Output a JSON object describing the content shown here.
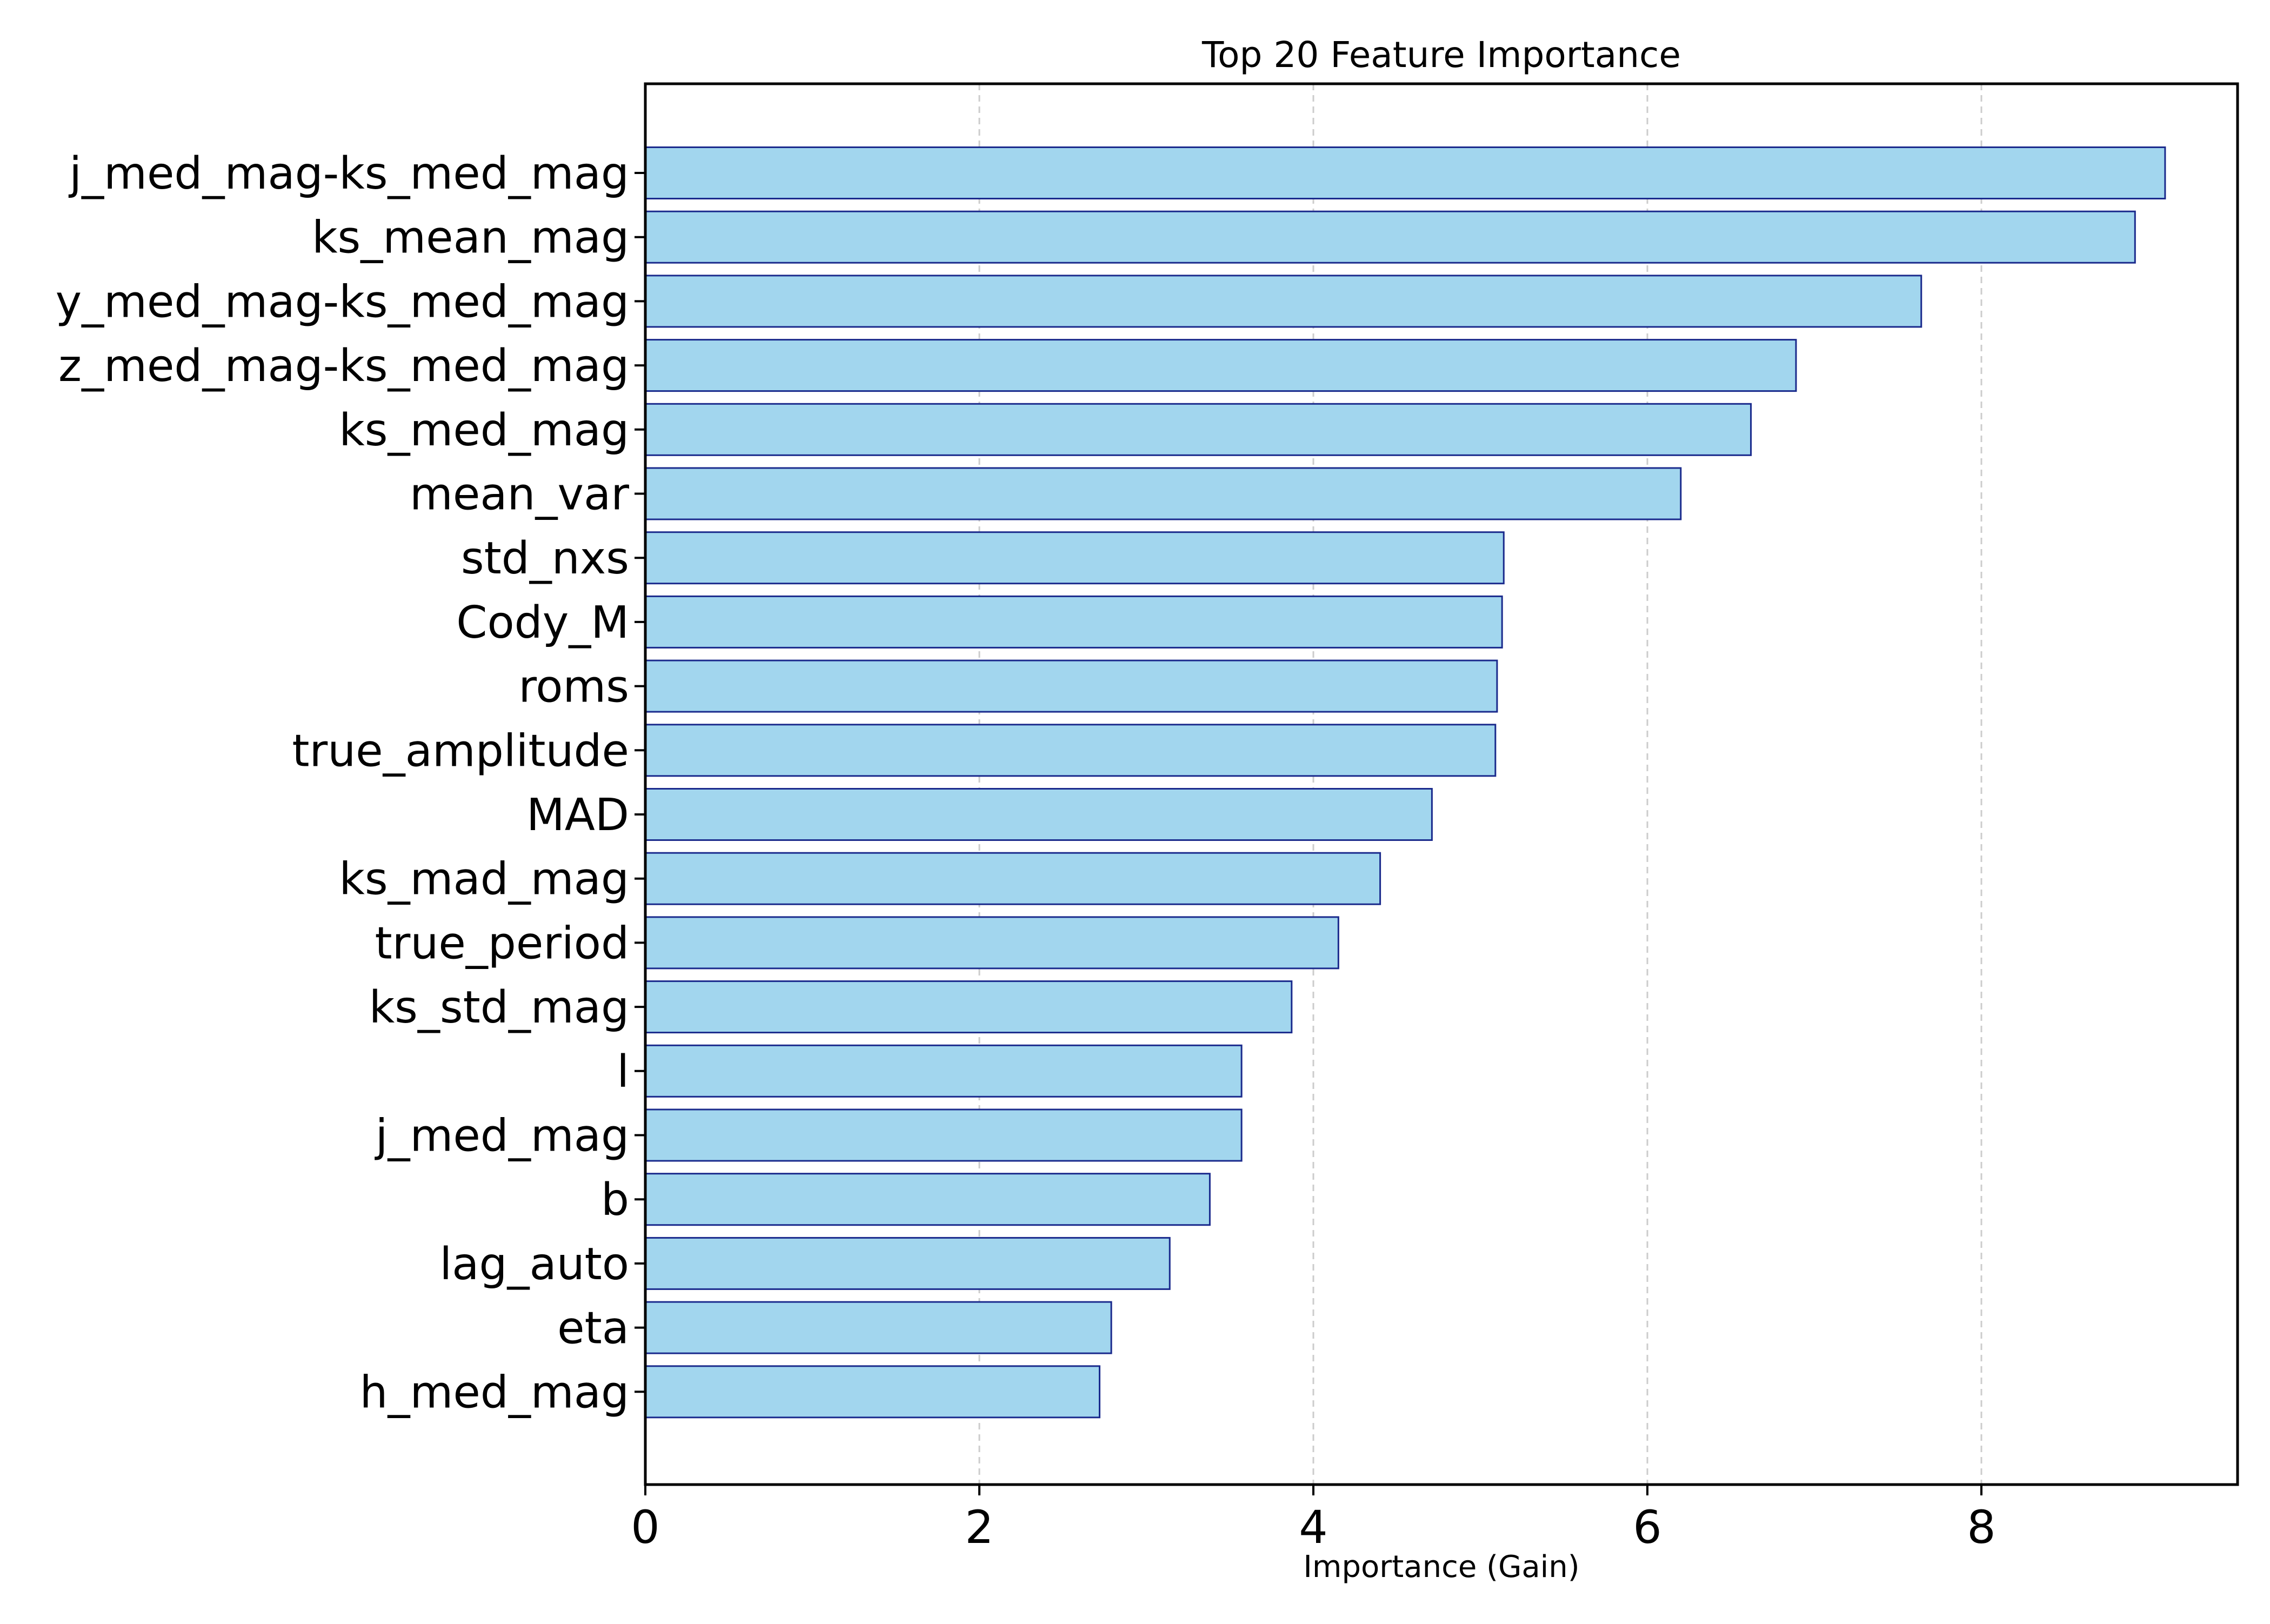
{
  "chart_data": {
    "type": "bar",
    "orientation": "horizontal",
    "title": "Top 20 Feature Importance",
    "xlabel": "Importance (Gain)",
    "ylabel": "",
    "xlim": [
      0,
      9.55
    ],
    "xticks": [
      0,
      2,
      4,
      6,
      8
    ],
    "xtick_labels": [
      "0",
      "2",
      "4",
      "6",
      "8"
    ],
    "grid": "x-axis dashed",
    "categories": [
      "j_med_mag-ks_med_mag",
      "ks_mean_mag",
      "y_med_mag-ks_med_mag",
      "z_med_mag-ks_med_mag",
      "ks_med_mag",
      "mean_var",
      "std_nxs",
      "Cody_M",
      "roms",
      "true_amplitude",
      "MAD",
      "ks_mad_mag",
      "true_period",
      "ks_std_mag",
      "l",
      "j_med_mag",
      "b",
      "lag_auto",
      "eta",
      "h_med_mag"
    ],
    "values": [
      9.1,
      8.92,
      7.64,
      6.89,
      6.62,
      6.2,
      5.14,
      5.13,
      5.1,
      5.09,
      4.71,
      4.4,
      4.15,
      3.87,
      3.57,
      3.57,
      3.38,
      3.14,
      2.79,
      2.72
    ],
    "bar_fill_color": "#a2d6ee",
    "bar_edge_color": "#1a2a8c"
  }
}
